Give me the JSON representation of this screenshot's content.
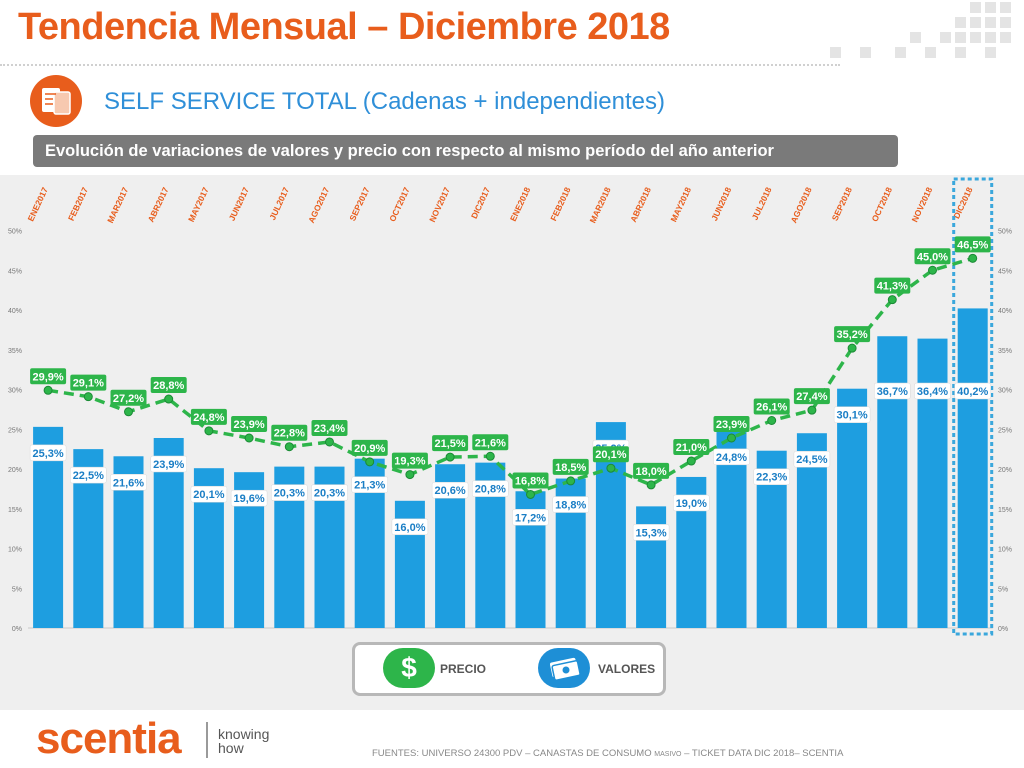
{
  "header": {
    "title": "Tendencia Mensual – Diciembre 2018",
    "subtitle": "SELF SERVICE TOTAL (Cadenas + independientes)",
    "banner": "Evolución de variaciones de valores y precio con respecto al mismo período del año anterior"
  },
  "legend": {
    "precio": "PRECIO",
    "valores": "VALORES",
    "precio_symbol": "$"
  },
  "brand": {
    "logo": "scentia",
    "tagline_1": "knowing",
    "tagline_2": "how"
  },
  "footer": {
    "prefix": "FUENTES: UNIVERSO 24300 PDV – CANASTAS DE CONSUMO ",
    "small": "MASIVO",
    "suffix": " – TICKET DATA DIC 2018– SCENTIA"
  },
  "colors": {
    "accent": "#e85d1c",
    "subtitle": "#2f8fd8",
    "bars": "#1e9ee0",
    "line": "#2db54a",
    "highlight": "#3aa7dc"
  },
  "chart_data": {
    "type": "bar",
    "categories": [
      "ENE2017",
      "FEB2017",
      "MAR2017",
      "ABR2017",
      "MAY2017",
      "JUN2017",
      "JUL2017",
      "AGO2017",
      "SEP2017",
      "OCT2017",
      "NOV2017",
      "DIC2017",
      "ENE2018",
      "FEB2018",
      "MAR2018",
      "ABR2018",
      "MAY2018",
      "JUN2018",
      "JUL2018",
      "AGO2018",
      "SEP2018",
      "OCT2018",
      "NOV2018",
      "DIC2018"
    ],
    "series": [
      {
        "name": "VALORES",
        "type": "bar",
        "values": [
          25.3,
          22.5,
          21.6,
          23.9,
          20.1,
          19.6,
          20.3,
          20.3,
          21.3,
          16.0,
          20.6,
          20.8,
          17.2,
          18.8,
          25.9,
          15.3,
          19.0,
          24.8,
          22.3,
          24.5,
          30.1,
          36.7,
          36.4,
          40.2
        ],
        "labels": [
          "25,3%",
          "22,5%",
          "21,6%",
          "23,9%",
          "20,1%",
          "19,6%",
          "20,3%",
          "20,3%",
          "21,3%",
          "16,0%",
          "20,6%",
          "20,8%",
          "17,2%",
          "18,8%",
          "25,9%",
          "15,3%",
          "19,0%",
          "24,8%",
          "22,3%",
          "24,5%",
          "30,1%",
          "36,7%",
          "36,4%",
          "40,2%"
        ]
      },
      {
        "name": "PRECIO",
        "type": "line",
        "values": [
          29.9,
          29.1,
          27.2,
          28.8,
          24.8,
          23.9,
          22.8,
          23.4,
          20.9,
          19.3,
          21.5,
          21.6,
          16.8,
          18.5,
          20.1,
          18.0,
          21.0,
          23.9,
          26.1,
          27.4,
          35.2,
          41.3,
          45.0,
          46.5
        ],
        "labels": [
          "29,9%",
          "29,1%",
          "27,2%",
          "28,8%",
          "24,8%",
          "23,9%",
          "22,8%",
          "23,4%",
          "20,9%",
          "19,3%",
          "21,5%",
          "21,6%",
          "16,8%",
          "18,5%",
          "20,1%",
          "18,0%",
          "21,0%",
          "23,9%",
          "26,1%",
          "27,4%",
          "35,2%",
          "41,3%",
          "45,0%",
          "46,5%"
        ]
      }
    ],
    "y_ticks": [
      "0%",
      "5%",
      "10%",
      "15%",
      "20%",
      "25%",
      "30%",
      "35%",
      "40%",
      "45%",
      "50%"
    ],
    "ylim": [
      0,
      50
    ],
    "highlight": "DIC2018",
    "grid": false
  }
}
